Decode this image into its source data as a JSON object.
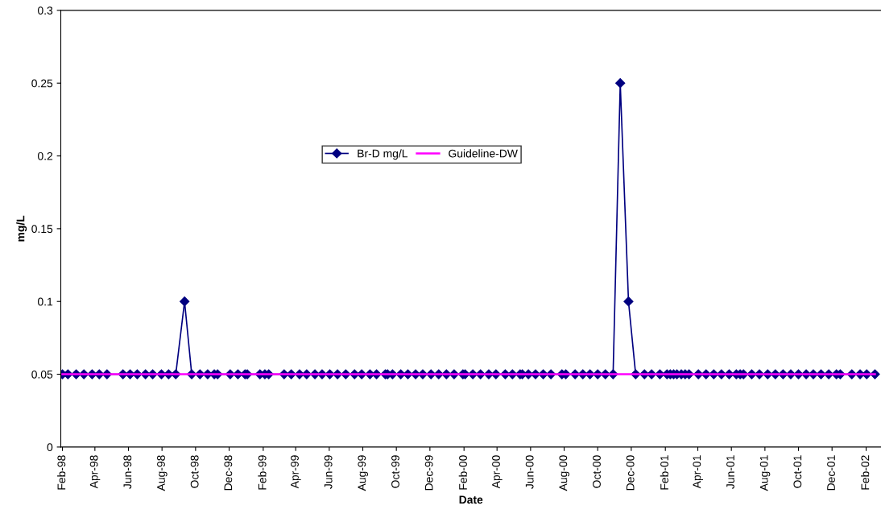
{
  "chart_data": {
    "type": "line",
    "xlabel": "Date",
    "ylabel": "mg/L",
    "series": [
      {
        "name": "Br-D mg/L",
        "color": "#000080",
        "marker": "diamond",
        "x": [
          "1998-02-01",
          "1998-02-11",
          "1998-02-26",
          "1998-03-12",
          "1998-03-27",
          "1998-04-09",
          "1998-04-23",
          "1998-05-22",
          "1998-06-04",
          "1998-06-17",
          "1998-07-02",
          "1998-07-15",
          "1998-07-31",
          "1998-08-13",
          "1998-08-26",
          "1998-09-11",
          "1998-09-24",
          "1998-10-09",
          "1998-10-23",
          "1998-11-04",
          "1998-11-10",
          "1998-12-03",
          "1998-12-17",
          "1998-12-30",
          "1999-01-03",
          "1999-01-26",
          "1999-02-04",
          "1999-02-11",
          "1999-03-11",
          "1999-03-24",
          "1999-04-08",
          "1999-04-21",
          "1999-05-06",
          "1999-05-19",
          "1999-06-02",
          "1999-06-16",
          "1999-07-01",
          "1999-07-17",
          "1999-07-30",
          "1999-08-14",
          "1999-08-26",
          "1999-09-11",
          "1999-09-15",
          "1999-09-24",
          "1999-10-09",
          "1999-10-22",
          "1999-11-05",
          "1999-11-18",
          "1999-12-03",
          "1999-12-17",
          "1999-12-31",
          "2000-01-14",
          "2000-01-30",
          "2000-02-03",
          "2000-02-17",
          "2000-03-02",
          "2000-03-17",
          "2000-03-30",
          "2000-04-16",
          "2000-04-29",
          "2000-05-13",
          "2000-05-17",
          "2000-05-28",
          "2000-06-10",
          "2000-06-24",
          "2000-07-08",
          "2000-07-28",
          "2000-08-04",
          "2000-08-21",
          "2000-09-04",
          "2000-09-17",
          "2000-10-01",
          "2000-10-15",
          "2000-10-29",
          "2000-11-11",
          "2000-11-26",
          "2000-12-09",
          "2000-12-25",
          "2001-01-07",
          "2001-01-22",
          "2001-02-04",
          "2001-02-10",
          "2001-02-16",
          "2001-02-22",
          "2001-03-02",
          "2001-03-09",
          "2001-03-16",
          "2001-04-02",
          "2001-04-16",
          "2001-04-30",
          "2001-05-14",
          "2001-05-28",
          "2001-06-10",
          "2001-06-17",
          "2001-06-23",
          "2001-07-08",
          "2001-07-22",
          "2001-08-06",
          "2001-08-20",
          "2001-09-03",
          "2001-09-17",
          "2001-10-01",
          "2001-10-15",
          "2001-10-28",
          "2001-11-11",
          "2001-11-25",
          "2001-12-09",
          "2001-12-16",
          "2002-01-06",
          "2002-01-21",
          "2002-02-02",
          "2002-02-17"
        ],
        "values": [
          0.05,
          0.05,
          0.05,
          0.05,
          0.05,
          0.05,
          0.05,
          0.05,
          0.05,
          0.05,
          0.05,
          0.05,
          0.05,
          0.05,
          0.05,
          0.1,
          0.05,
          0.05,
          0.05,
          0.05,
          0.05,
          0.05,
          0.05,
          0.05,
          0.05,
          0.05,
          0.05,
          0.05,
          0.05,
          0.05,
          0.05,
          0.05,
          0.05,
          0.05,
          0.05,
          0.05,
          0.05,
          0.05,
          0.05,
          0.05,
          0.05,
          0.05,
          0.05,
          0.05,
          0.05,
          0.05,
          0.05,
          0.05,
          0.05,
          0.05,
          0.05,
          0.05,
          0.05,
          0.05,
          0.05,
          0.05,
          0.05,
          0.05,
          0.05,
          0.05,
          0.05,
          0.05,
          0.05,
          0.05,
          0.05,
          0.05,
          0.05,
          0.05,
          0.05,
          0.05,
          0.05,
          0.05,
          0.05,
          0.05,
          0.25,
          0.1,
          0.05,
          0.05,
          0.05,
          0.05,
          0.05,
          0.05,
          0.05,
          0.05,
          0.05,
          0.05,
          0.05,
          0.05,
          0.05,
          0.05,
          0.05,
          0.05,
          0.05,
          0.05,
          0.05,
          0.05,
          0.05,
          0.05,
          0.05,
          0.05,
          0.05,
          0.05,
          0.05,
          0.05,
          0.05,
          0.05,
          0.05,
          0.05,
          0.05,
          0.05,
          0.05,
          0.05
        ]
      },
      {
        "name": "Guideline-DW",
        "color": "#ff00ff",
        "marker": "none",
        "x": [
          "1998-02-01",
          "2002-02-17"
        ],
        "values": [
          0.05,
          0.05
        ]
      }
    ],
    "xlim": [
      "1998-01-29",
      "2002-02-28"
    ],
    "xticks": [
      {
        "value": "1998-02-01",
        "label": "Feb-98"
      },
      {
        "value": "1998-04-01",
        "label": "Apr-98"
      },
      {
        "value": "1998-06-01",
        "label": "Jun-98"
      },
      {
        "value": "1998-08-01",
        "label": "Aug-98"
      },
      {
        "value": "1998-10-01",
        "label": "Oct-98"
      },
      {
        "value": "1998-12-01",
        "label": "Dec-98"
      },
      {
        "value": "1999-02-01",
        "label": "Feb-99"
      },
      {
        "value": "1999-04-01",
        "label": "Apr-99"
      },
      {
        "value": "1999-06-01",
        "label": "Jun-99"
      },
      {
        "value": "1999-08-01",
        "label": "Aug-99"
      },
      {
        "value": "1999-10-01",
        "label": "Oct-99"
      },
      {
        "value": "1999-12-01",
        "label": "Dec-99"
      },
      {
        "value": "2000-02-01",
        "label": "Feb-00"
      },
      {
        "value": "2000-04-01",
        "label": "Apr-00"
      },
      {
        "value": "2000-06-01",
        "label": "Jun-00"
      },
      {
        "value": "2000-08-01",
        "label": "Aug-00"
      },
      {
        "value": "2000-10-01",
        "label": "Oct-00"
      },
      {
        "value": "2000-12-01",
        "label": "Dec-00"
      },
      {
        "value": "2001-02-01",
        "label": "Feb-01"
      },
      {
        "value": "2001-04-01",
        "label": "Apr-01"
      },
      {
        "value": "2001-06-01",
        "label": "Jun-01"
      },
      {
        "value": "2001-08-01",
        "label": "Aug-01"
      },
      {
        "value": "2001-10-01",
        "label": "Oct-01"
      },
      {
        "value": "2001-12-01",
        "label": "Dec-01"
      },
      {
        "value": "2002-02-01",
        "label": "Feb-02"
      }
    ],
    "ylim": [
      0,
      0.3
    ],
    "yticks": [
      0,
      0.05,
      0.1,
      0.15,
      0.2,
      0.25,
      0.3
    ],
    "grid": false,
    "legend": "center",
    "line_style": "solid"
  }
}
